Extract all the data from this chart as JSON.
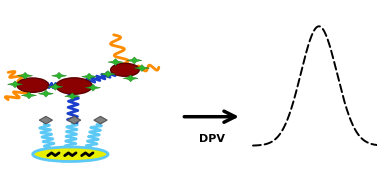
{
  "figure_width": 3.78,
  "figure_height": 1.72,
  "dpi": 100,
  "background_color": "#ffffff",
  "arrow_label": "DPV",
  "arrow_label_fontsize": 8,
  "arrow_label_fontweight": "bold",
  "orange_color": "#ff8c00",
  "blue_color": "#1a3fcc",
  "green_color": "#2db52d",
  "dark_red_color": "#8b0000",
  "gray_color": "#808080",
  "yellow_color": "#e8f000",
  "light_blue_color": "#5bc8f5",
  "black_color": "#000000"
}
